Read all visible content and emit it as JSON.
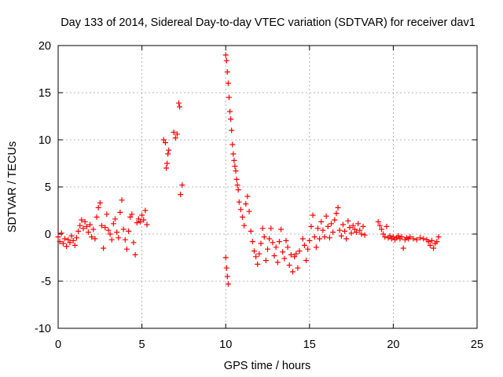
{
  "chart_data": {
    "type": "scatter",
    "title": "Day 133 of 2014, Sidereal Day-to-day VTEC variation (SDTVAR) for receiver dav1",
    "xlabel": "GPS time / hours",
    "ylabel": "SDTVAR / TECUs",
    "xlim": [
      0,
      25
    ],
    "ylim": [
      -10,
      20
    ],
    "xticks": [
      0,
      5,
      10,
      15,
      20,
      25
    ],
    "yticks": [
      -10,
      -5,
      0,
      5,
      10,
      15,
      20
    ],
    "grid": true,
    "marker": "+",
    "colors": {
      "points": "#ff0000",
      "grid": "#a0a0a0",
      "axis": "#000000"
    },
    "series": [
      {
        "name": "SDTVAR dav1",
        "points": [
          [
            0.0,
            -0.3
          ],
          [
            0.1,
            -0.8
          ],
          [
            0.2,
            0.1
          ],
          [
            0.3,
            -1.0
          ],
          [
            0.4,
            -0.5
          ],
          [
            0.5,
            -1.3
          ],
          [
            0.6,
            -0.6
          ],
          [
            0.7,
            -0.9
          ],
          [
            0.8,
            -0.2
          ],
          [
            0.9,
            -0.7
          ],
          [
            1.0,
            -1.2
          ],
          [
            1.1,
            -0.4
          ],
          [
            1.2,
            0.3
          ],
          [
            1.3,
            0.9
          ],
          [
            1.4,
            1.5
          ],
          [
            1.5,
            0.6
          ],
          [
            1.6,
            1.3
          ],
          [
            1.7,
            0.8
          ],
          [
            1.8,
            0.2
          ],
          [
            1.9,
            1.0
          ],
          [
            2.0,
            -0.3
          ],
          [
            2.1,
            0.5
          ],
          [
            2.2,
            -0.5
          ],
          [
            2.3,
            1.8
          ],
          [
            2.4,
            2.8
          ],
          [
            2.5,
            3.3
          ],
          [
            2.6,
            0.9
          ],
          [
            2.7,
            -1.5
          ],
          [
            2.8,
            0.7
          ],
          [
            2.9,
            2.1
          ],
          [
            3.0,
            0.4
          ],
          [
            3.1,
            0.0
          ],
          [
            3.2,
            -0.6
          ],
          [
            3.3,
            1.1
          ],
          [
            3.4,
            1.6
          ],
          [
            3.5,
            0.2
          ],
          [
            3.6,
            -0.4
          ],
          [
            3.7,
            2.3
          ],
          [
            3.8,
            3.6
          ],
          [
            3.9,
            0.5
          ],
          [
            4.0,
            -0.6
          ],
          [
            4.1,
            -1.6
          ],
          [
            4.2,
            0.3
          ],
          [
            4.3,
            1.8
          ],
          [
            4.4,
            2.1
          ],
          [
            4.5,
            -0.9
          ],
          [
            4.6,
            -2.2
          ],
          [
            4.7,
            1.2
          ],
          [
            4.8,
            1.6
          ],
          [
            4.9,
            1.3
          ],
          [
            5.0,
            2.0
          ],
          [
            5.1,
            1.5
          ],
          [
            5.2,
            2.5
          ],
          [
            5.3,
            1.0
          ],
          [
            6.3,
            10.0
          ],
          [
            6.4,
            9.7
          ],
          [
            6.45,
            7.0
          ],
          [
            6.5,
            7.5
          ],
          [
            6.55,
            8.5
          ],
          [
            6.6,
            8.9
          ],
          [
            6.9,
            10.8
          ],
          [
            7.0,
            10.2
          ],
          [
            7.1,
            10.6
          ],
          [
            7.2,
            13.9
          ],
          [
            7.25,
            13.5
          ],
          [
            7.3,
            4.2
          ],
          [
            7.4,
            5.2
          ],
          [
            10.0,
            -2.5
          ],
          [
            10.05,
            -3.6
          ],
          [
            10.1,
            -4.5
          ],
          [
            10.15,
            -5.3
          ],
          [
            10.0,
            19.0
          ],
          [
            10.05,
            18.4
          ],
          [
            10.1,
            17.2
          ],
          [
            10.15,
            16.0
          ],
          [
            10.2,
            14.5
          ],
          [
            10.25,
            13.0
          ],
          [
            10.3,
            12.2
          ],
          [
            10.35,
            11.0
          ],
          [
            10.4,
            9.5
          ],
          [
            10.45,
            8.5
          ],
          [
            10.5,
            7.8
          ],
          [
            10.55,
            7.2
          ],
          [
            10.6,
            6.7
          ],
          [
            10.65,
            5.8
          ],
          [
            10.7,
            5.2
          ],
          [
            10.75,
            4.7
          ],
          [
            10.8,
            3.4
          ],
          [
            10.9,
            2.6
          ],
          [
            11.0,
            1.8
          ],
          [
            11.1,
            0.9
          ],
          [
            11.2,
            3.2
          ],
          [
            11.3,
            4.0
          ],
          [
            11.4,
            2.4
          ],
          [
            11.5,
            0.3
          ],
          [
            11.6,
            -0.8
          ],
          [
            11.7,
            -1.8
          ],
          [
            11.8,
            -2.4
          ],
          [
            11.9,
            -3.2
          ],
          [
            12.0,
            -2.1
          ],
          [
            12.1,
            -1.0
          ],
          [
            12.2,
            0.6
          ],
          [
            12.3,
            -0.3
          ],
          [
            12.4,
            -2.8
          ],
          [
            12.5,
            -1.6
          ],
          [
            12.6,
            -0.5
          ],
          [
            12.7,
            0.6
          ],
          [
            12.8,
            -0.9
          ],
          [
            12.9,
            -2.3
          ],
          [
            13.0,
            -1.4
          ],
          [
            13.1,
            -3.0
          ],
          [
            13.2,
            -0.8
          ],
          [
            13.3,
            0.5
          ],
          [
            13.4,
            -1.9
          ],
          [
            13.5,
            -2.6
          ],
          [
            13.6,
            -0.7
          ],
          [
            13.7,
            -1.4
          ],
          [
            13.8,
            -3.3
          ],
          [
            13.9,
            -2.2
          ],
          [
            14.0,
            -4.0
          ],
          [
            14.1,
            -2.4
          ],
          [
            14.2,
            -2.1
          ],
          [
            14.3,
            -3.6
          ],
          [
            14.4,
            -1.8
          ],
          [
            14.6,
            -0.5
          ],
          [
            14.7,
            -1.2
          ],
          [
            14.8,
            -2.8
          ],
          [
            14.9,
            -1.6
          ],
          [
            15.0,
            -0.7
          ],
          [
            15.1,
            0.8
          ],
          [
            15.2,
            2.0
          ],
          [
            15.3,
            -0.3
          ],
          [
            15.4,
            -1.4
          ],
          [
            15.5,
            0.6
          ],
          [
            15.6,
            -0.5
          ],
          [
            15.7,
            1.3
          ],
          [
            15.8,
            0.4
          ],
          [
            15.9,
            -0.3
          ],
          [
            16.0,
            1.9
          ],
          [
            16.1,
            0.8
          ],
          [
            16.2,
            -0.4
          ],
          [
            16.3,
            1.1
          ],
          [
            16.4,
            0.2
          ],
          [
            16.5,
            1.5
          ],
          [
            16.6,
            2.2
          ],
          [
            16.7,
            2.8
          ],
          [
            16.8,
            0.4
          ],
          [
            16.9,
            -0.2
          ],
          [
            17.0,
            1.0
          ],
          [
            17.1,
            0.3
          ],
          [
            17.2,
            -0.5
          ],
          [
            17.3,
            1.4
          ],
          [
            17.4,
            0.7
          ],
          [
            17.5,
            0.1
          ],
          [
            17.6,
            0.9
          ],
          [
            17.7,
            0.5
          ],
          [
            17.8,
            0.2
          ],
          [
            17.9,
            1.1
          ],
          [
            18.0,
            0.4
          ],
          [
            18.1,
            0.0
          ],
          [
            18.2,
            0.8
          ],
          [
            18.3,
            -0.1
          ],
          [
            19.1,
            1.3
          ],
          [
            19.2,
            0.9
          ],
          [
            19.3,
            0.5
          ],
          [
            19.4,
            0.0
          ],
          [
            19.5,
            -0.3
          ],
          [
            19.6,
            0.8
          ],
          [
            19.7,
            -0.4
          ],
          [
            19.8,
            -0.2
          ],
          [
            19.9,
            -0.5
          ],
          [
            20.0,
            -0.3
          ],
          [
            20.1,
            -0.6
          ],
          [
            20.2,
            -0.4
          ],
          [
            20.3,
            -0.2
          ],
          [
            20.4,
            -0.5
          ],
          [
            20.5,
            -0.3
          ],
          [
            20.6,
            -1.5
          ],
          [
            20.7,
            -0.6
          ],
          [
            20.8,
            -0.4
          ],
          [
            20.9,
            -0.5
          ],
          [
            21.0,
            -0.3
          ],
          [
            21.2,
            -0.5
          ],
          [
            21.4,
            -0.6
          ],
          [
            21.6,
            -0.4
          ],
          [
            21.8,
            -0.5
          ],
          [
            22.0,
            -0.6
          ],
          [
            22.1,
            -0.8
          ],
          [
            22.2,
            -1.2
          ],
          [
            22.3,
            -0.7
          ],
          [
            22.4,
            -1.5
          ],
          [
            22.5,
            -1.0
          ],
          [
            22.6,
            -0.8
          ],
          [
            22.7,
            -0.3
          ]
        ]
      }
    ]
  }
}
